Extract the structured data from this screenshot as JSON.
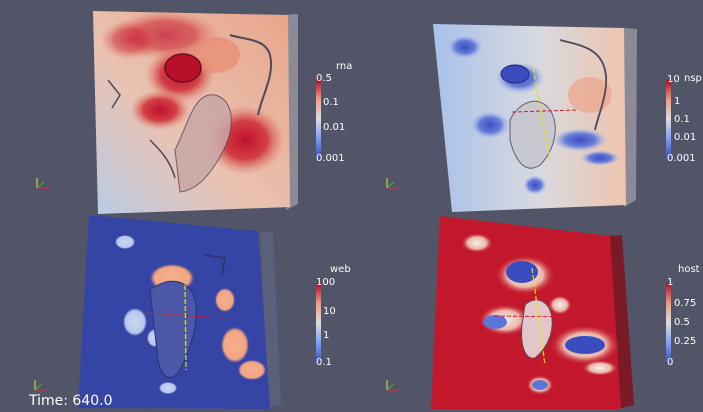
{
  "time_annotation": "Time: 640.0",
  "views": [
    {
      "array_name": "rna",
      "scale": "log",
      "tick_labels": [
        "0.5",
        "0.1",
        "0.01",
        "0.001"
      ],
      "colormap": [
        "#3b4cc0",
        "#b7cff9",
        "#dddcdc",
        "#f4987a",
        "#b40426"
      ]
    },
    {
      "array_name": "nsp",
      "scale": "log",
      "tick_labels": [
        "10",
        "1",
        "0.1",
        "0.01",
        "0.001"
      ],
      "colormap": [
        "#3b4cc0",
        "#b7cff9",
        "#dddcdc",
        "#f4987a",
        "#b40426"
      ]
    },
    {
      "array_name": "web",
      "scale": "log",
      "tick_labels": [
        "100",
        "10",
        "1",
        "0.1"
      ],
      "colormap": [
        "#3b4cc0",
        "#b7cff9",
        "#dddcdc",
        "#f4987a",
        "#b40426"
      ]
    },
    {
      "array_name": "host",
      "scale": "linear",
      "tick_labels": [
        "1",
        "0.75",
        "0.5",
        "0.25",
        "0"
      ],
      "colormap": [
        "#3b4cc0",
        "#b7cff9",
        "#dddcdc",
        "#f4987a",
        "#b40426"
      ]
    }
  ],
  "orientation_axes": [
    "x",
    "y",
    "z"
  ],
  "background_color": "#525468"
}
